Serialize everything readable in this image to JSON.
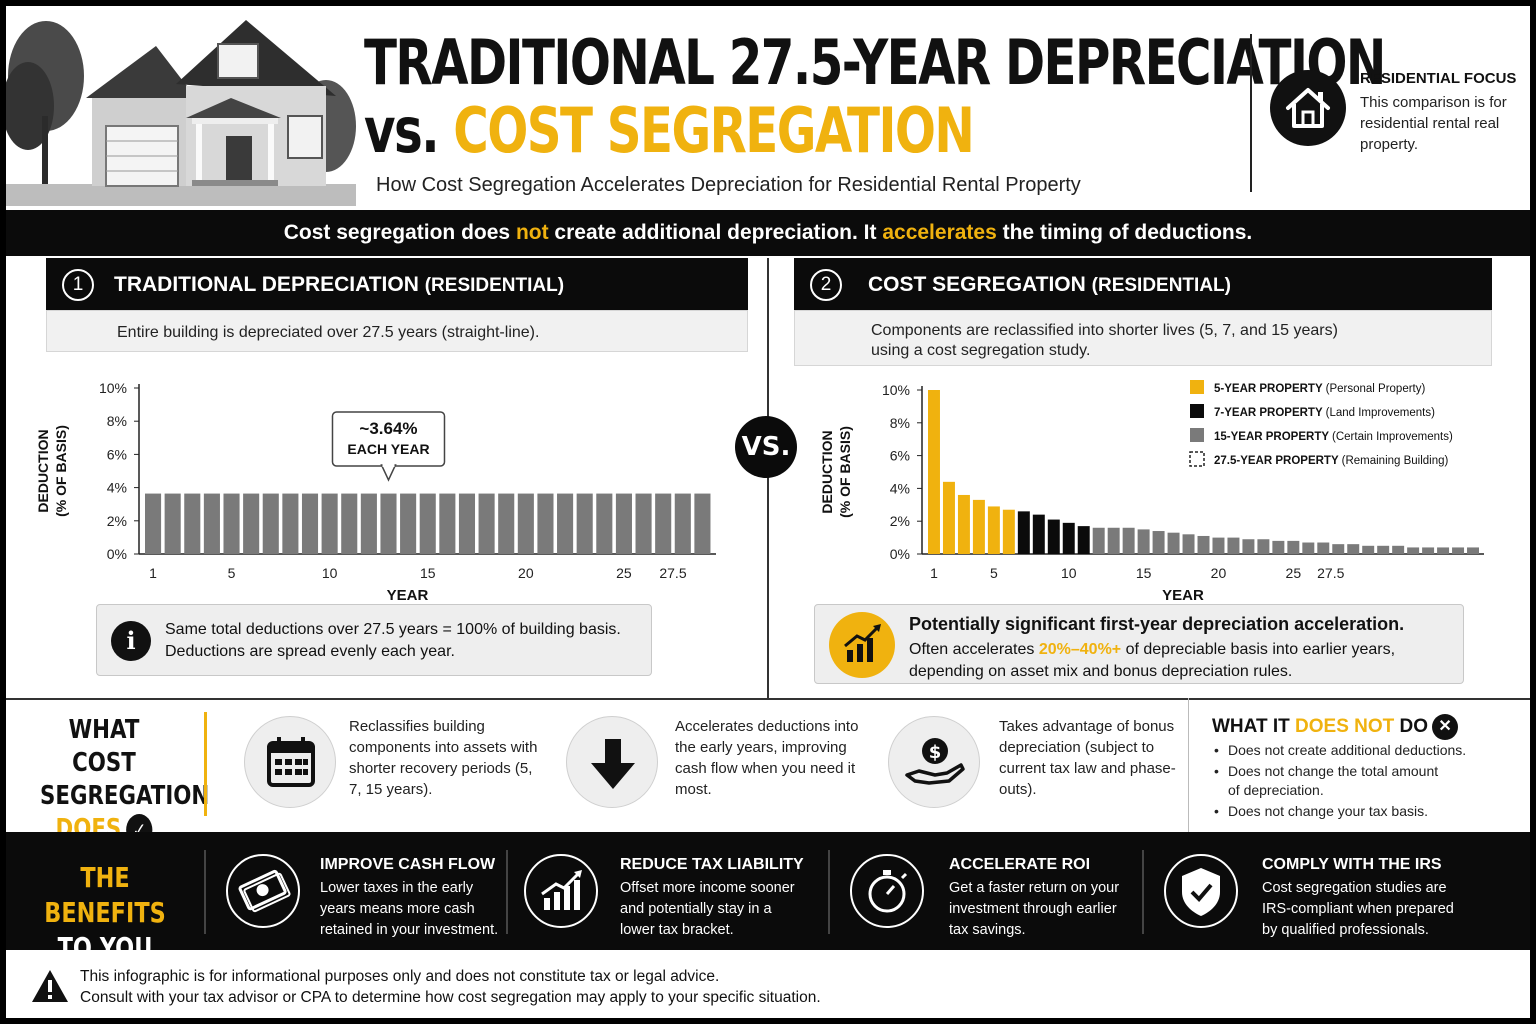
{
  "header": {
    "title_line1": "TRADITIONAL 27.5-YEAR DEPRECIATION",
    "title_vs": "vs.",
    "title_cs": "COST SEGREGATION",
    "subtitle": "How Cost Segregation Accelerates Depreciation for Residential Rental Property",
    "residential_focus_title": "RESIDENTIAL FOCUS",
    "residential_focus_text": "This comparison is for residential rental real property."
  },
  "banner": {
    "part1": "Cost segregation does ",
    "not": "not",
    "part2": " create additional depreciation. It ",
    "accelerates": "accelerates",
    "part3": " the timing of deductions."
  },
  "left_panel": {
    "number": "1",
    "title": "TRADITIONAL DEPRECIATION",
    "title_suffix": "(RESIDENTIAL)",
    "description": "Entire building is depreciated over 27.5 years (straight-line).",
    "callout_value": "~3.64%",
    "callout_label": "EACH YEAR",
    "info_line1": "Same total deductions over 27.5 years = 100% of building basis.",
    "info_line2": "Deductions are spread evenly each year."
  },
  "right_panel": {
    "number": "2",
    "title": "COST SEGREGATION",
    "title_suffix": "(RESIDENTIAL)",
    "description_line1": "Components are reclassified into shorter lives (5, 7, and 15 years)",
    "description_line2": "using a cost segregation study.",
    "highlight_title": "Potentially significant first-year depreciation acceleration.",
    "highlight_pre": "Often accelerates ",
    "highlight_range": "20%–40%+",
    "highlight_post": " of depreciable basis into earlier years,",
    "highlight_line2": "depending on asset mix and bonus depreciation rules."
  },
  "vs_badge": "VS.",
  "chart_data": [
    {
      "type": "bar",
      "title": "",
      "xlabel": "YEAR",
      "ylabel": "DEDUCTION (% OF BASIS)",
      "ylim": [
        0,
        10
      ],
      "yticks": [
        "0%",
        "2%",
        "4%",
        "6%",
        "8%",
        "10%"
      ],
      "xticks": [
        "1",
        "5",
        "10",
        "15",
        "20",
        "25",
        "27.5"
      ],
      "grid": false,
      "series": [
        {
          "name": "",
          "color": "#7a7a7a",
          "values": [
            3.64,
            3.64,
            3.64,
            3.64,
            3.64,
            3.64,
            3.64,
            3.64,
            3.64,
            3.64,
            3.64,
            3.64,
            3.64,
            3.64,
            3.64,
            3.64,
            3.64,
            3.64,
            3.64,
            3.64,
            3.64,
            3.64,
            3.64,
            3.64,
            3.64,
            3.64,
            3.64,
            3.64,
            3.64
          ]
        }
      ]
    },
    {
      "type": "bar",
      "title": "",
      "xlabel": "YEAR",
      "ylabel": "DEDUCTION (% OF BASIS)",
      "ylim": [
        0,
        10
      ],
      "yticks": [
        "0%",
        "2%",
        "4%",
        "6%",
        "8%",
        "10%"
      ],
      "xticks": [
        "1",
        "5",
        "10",
        "15",
        "20",
        "25",
        "27.5"
      ],
      "grid": false,
      "legend_position": "top-right",
      "legend": [
        {
          "name": "5-YEAR PROPERTY",
          "detail": "(Personal Property)",
          "color": "#f0b20f",
          "style": "solid"
        },
        {
          "name": "7-YEAR PROPERTY",
          "detail": "(Land Improvements)",
          "color": "#0b0b0b",
          "style": "solid"
        },
        {
          "name": "15-YEAR PROPERTY",
          "detail": "(Certain Improvements)",
          "color": "#7a7a7a",
          "style": "solid"
        },
        {
          "name": "27.5-YEAR PROPERTY",
          "detail": "(Remaining Building)",
          "color": "#222222",
          "style": "dashed"
        }
      ],
      "series": [
        {
          "name": "5-YEAR PROPERTY",
          "color": "#f0b20f",
          "values": [
            10.0,
            4.4,
            3.6,
            3.3,
            2.9,
            2.7
          ]
        },
        {
          "name": "7-YEAR PROPERTY",
          "color": "#0b0b0b",
          "values": [
            2.6,
            2.4,
            2.1,
            1.9,
            1.7
          ]
        },
        {
          "name": "15-YEAR PROPERTY",
          "color": "#7a7a7a",
          "values": [
            1.6,
            1.6,
            1.6,
            1.5,
            1.4,
            1.3,
            1.2,
            1.1,
            1.0,
            1.0,
            0.9,
            0.9,
            0.8,
            0.8,
            0.7,
            0.7,
            0.6,
            0.6,
            0.5,
            0.5,
            0.5,
            0.4,
            0.4,
            0.4,
            0.4,
            0.4
          ]
        }
      ]
    }
  ],
  "does_section": {
    "title_line1": "WHAT COST",
    "title_line2": "SEGREGATION",
    "title_line3": "DOES",
    "items": [
      {
        "icon": "calendar-icon",
        "text": "Reclassifies building components into assets with shorter recovery periods (5, 7, 15 years)."
      },
      {
        "icon": "arrow-down-icon",
        "text": "Accelerates deductions into the early years, improving cash flow when you need it most."
      },
      {
        "icon": "dollar-hand-icon",
        "text": "Takes advantage of bonus depreciation (subject to current tax law and phase-outs)."
      }
    ],
    "not_title_pre": "WHAT IT ",
    "not_title_hl": "DOES NOT",
    "not_title_post": " DO",
    "not_items": [
      "Does not create additional deductions.",
      "Does not change the total amount of depreciation.",
      "Does not change your tax basis."
    ]
  },
  "benefits": {
    "title_line1": "THE BENEFITS",
    "title_line2": "TO YOU",
    "items": [
      {
        "icon": "cash-icon",
        "title": "IMPROVE CASH FLOW",
        "text": "Lower taxes in the early years means more cash retained in your investment."
      },
      {
        "icon": "growth-chart-icon",
        "title": "REDUCE TAX LIABILITY",
        "text": "Offset more income sooner and potentially stay in a lower tax bracket."
      },
      {
        "icon": "stopwatch-icon",
        "title": "ACCELERATE ROI",
        "text": "Get a faster return on your investment through earlier tax savings."
      },
      {
        "icon": "shield-check-icon",
        "title": "COMPLY WITH THE IRS",
        "text": "Cost segregation studies are IRS-compliant when prepared by qualified professionals."
      }
    ]
  },
  "disclaimer": {
    "line1": "This infographic is for informational purposes only and does not constitute tax or legal advice.",
    "line2": "Consult with your tax advisor or CPA to determine how cost segregation may apply to your specific situation."
  },
  "colors": {
    "accent": "#f0b20f",
    "dark": "#0b0b0b",
    "gray_bar": "#7a7a7a"
  }
}
